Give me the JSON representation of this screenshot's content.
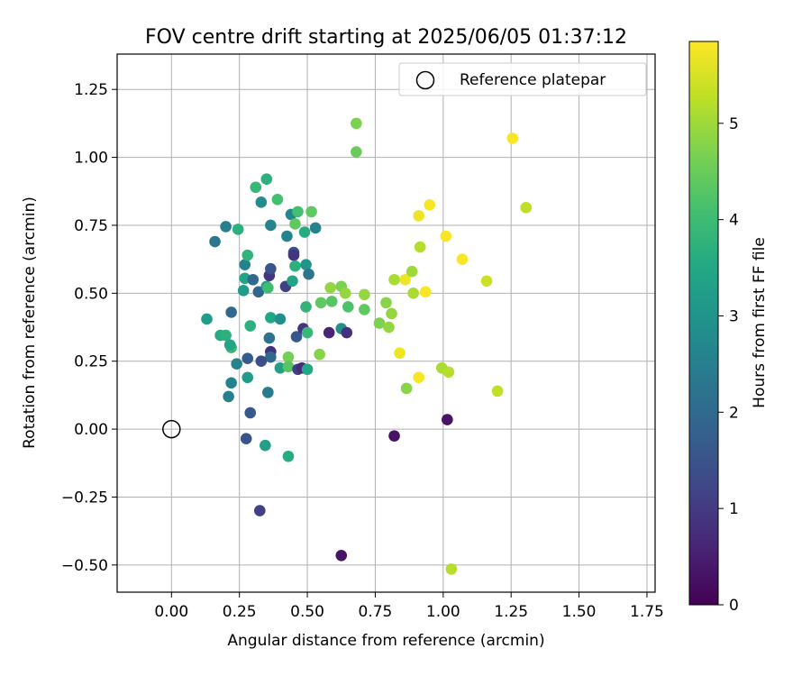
{
  "chart_data": {
    "type": "scatter",
    "title": "FOV centre drift starting at 2025/06/05 01:37:12",
    "xlabel": "Angular distance from reference (arcmin)",
    "ylabel": "Rotation from reference (arcmin)",
    "xlim": [
      -0.2,
      1.78
    ],
    "ylim": [
      -0.6,
      1.38
    ],
    "xticks": [
      "0.00",
      "0.25",
      "0.50",
      "0.75",
      "1.00",
      "1.25",
      "1.50",
      "1.75"
    ],
    "yticks": [
      "−0.50",
      "−0.25",
      "0.00",
      "0.25",
      "0.50",
      "0.75",
      "1.00",
      "1.25"
    ],
    "grid": true,
    "legend": {
      "placement": "top-right",
      "entries": [
        "Reference platepar"
      ]
    },
    "reference": {
      "x": 0.0,
      "y": 0.0
    },
    "colorbar": {
      "label": "Hours from first FF file",
      "colormap": "viridis",
      "min": 0,
      "max": 5.85,
      "ticks": [
        "0",
        "1",
        "2",
        "3",
        "4",
        "5"
      ]
    },
    "points": [
      {
        "x": 0.16,
        "y": 0.69,
        "h": 2.3
      },
      {
        "x": 0.2,
        "y": 0.745,
        "h": 2.5
      },
      {
        "x": 0.245,
        "y": 0.735,
        "h": 3.7
      },
      {
        "x": 0.13,
        "y": 0.405,
        "h": 3.2
      },
      {
        "x": 0.18,
        "y": 0.345,
        "h": 3.6
      },
      {
        "x": 0.2,
        "y": 0.345,
        "h": 3.7
      },
      {
        "x": 0.22,
        "y": 0.3,
        "h": 3.9
      },
      {
        "x": 0.215,
        "y": 0.31,
        "h": 3.4
      },
      {
        "x": 0.22,
        "y": 0.43,
        "h": 2.0
      },
      {
        "x": 0.24,
        "y": 0.24,
        "h": 2.6
      },
      {
        "x": 0.22,
        "y": 0.17,
        "h": 2.6
      },
      {
        "x": 0.21,
        "y": 0.12,
        "h": 2.5
      },
      {
        "x": 0.27,
        "y": 0.605,
        "h": 2.6
      },
      {
        "x": 0.27,
        "y": 0.555,
        "h": 3.4
      },
      {
        "x": 0.265,
        "y": 0.51,
        "h": 3.2
      },
      {
        "x": 0.28,
        "y": 0.64,
        "h": 3.8
      },
      {
        "x": 0.29,
        "y": 0.38,
        "h": 3.7
      },
      {
        "x": 0.28,
        "y": 0.26,
        "h": 1.7
      },
      {
        "x": 0.28,
        "y": 0.19,
        "h": 3.2
      },
      {
        "x": 0.29,
        "y": 0.06,
        "h": 1.6
      },
      {
        "x": 0.275,
        "y": -0.035,
        "h": 1.5
      },
      {
        "x": 0.31,
        "y": 0.89,
        "h": 3.9
      },
      {
        "x": 0.33,
        "y": 0.835,
        "h": 2.8
      },
      {
        "x": 0.35,
        "y": 0.92,
        "h": 3.7
      },
      {
        "x": 0.3,
        "y": 0.55,
        "h": 2.0
      },
      {
        "x": 0.32,
        "y": 0.505,
        "h": 1.9
      },
      {
        "x": 0.35,
        "y": 0.525,
        "h": 3.1
      },
      {
        "x": 0.355,
        "y": 0.52,
        "h": 4.0
      },
      {
        "x": 0.36,
        "y": 0.565,
        "h": 0.9
      },
      {
        "x": 0.365,
        "y": 0.59,
        "h": 1.5
      },
      {
        "x": 0.365,
        "y": 0.41,
        "h": 3.5
      },
      {
        "x": 0.36,
        "y": 0.335,
        "h": 2.2
      },
      {
        "x": 0.365,
        "y": 0.285,
        "h": 0.8
      },
      {
        "x": 0.365,
        "y": 0.265,
        "h": 2.0
      },
      {
        "x": 0.33,
        "y": 0.25,
        "h": 1.4
      },
      {
        "x": 0.355,
        "y": 0.135,
        "h": 2.4
      },
      {
        "x": 0.345,
        "y": -0.06,
        "h": 3.3
      },
      {
        "x": 0.325,
        "y": -0.3,
        "h": 1.1
      },
      {
        "x": 0.365,
        "y": 0.75,
        "h": 2.6
      },
      {
        "x": 0.39,
        "y": 0.845,
        "h": 4.1
      },
      {
        "x": 0.4,
        "y": 0.405,
        "h": 2.9
      },
      {
        "x": 0.4,
        "y": 0.225,
        "h": 3.3
      },
      {
        "x": 0.42,
        "y": 0.525,
        "h": 1.1
      },
      {
        "x": 0.425,
        "y": 0.71,
        "h": 2.6
      },
      {
        "x": 0.44,
        "y": 0.79,
        "h": 2.7
      },
      {
        "x": 0.455,
        "y": 0.755,
        "h": 4.4
      },
      {
        "x": 0.465,
        "y": 0.8,
        "h": 4.1
      },
      {
        "x": 0.45,
        "y": 0.65,
        "h": 1.4
      },
      {
        "x": 0.45,
        "y": 0.64,
        "h": 0.9
      },
      {
        "x": 0.455,
        "y": 0.6,
        "h": 3.7
      },
      {
        "x": 0.445,
        "y": 0.545,
        "h": 3.4
      },
      {
        "x": 0.43,
        "y": 0.265,
        "h": 4.6
      },
      {
        "x": 0.43,
        "y": 0.23,
        "h": 4.3
      },
      {
        "x": 0.46,
        "y": 0.34,
        "h": 1.6
      },
      {
        "x": 0.465,
        "y": 0.22,
        "h": 1.1
      },
      {
        "x": 0.43,
        "y": -0.1,
        "h": 3.6
      },
      {
        "x": 0.49,
        "y": 0.725,
        "h": 3.6
      },
      {
        "x": 0.495,
        "y": 0.605,
        "h": 3.0
      },
      {
        "x": 0.505,
        "y": 0.57,
        "h": 2.3
      },
      {
        "x": 0.495,
        "y": 0.45,
        "h": 3.8
      },
      {
        "x": 0.485,
        "y": 0.37,
        "h": 0.9
      },
      {
        "x": 0.5,
        "y": 0.355,
        "h": 3.9
      },
      {
        "x": 0.48,
        "y": 0.225,
        "h": 0.7
      },
      {
        "x": 0.5,
        "y": 0.22,
        "h": 3.5
      },
      {
        "x": 0.515,
        "y": 0.8,
        "h": 4.4
      },
      {
        "x": 0.53,
        "y": 0.74,
        "h": 2.6
      },
      {
        "x": 0.55,
        "y": 0.465,
        "h": 4.4
      },
      {
        "x": 0.545,
        "y": 0.275,
        "h": 4.8
      },
      {
        "x": 0.585,
        "y": 0.52,
        "h": 4.9
      },
      {
        "x": 0.59,
        "y": 0.47,
        "h": 4.3
      },
      {
        "x": 0.58,
        "y": 0.355,
        "h": 0.6
      },
      {
        "x": 0.625,
        "y": 0.525,
        "h": 4.7
      },
      {
        "x": 0.625,
        "y": 0.37,
        "h": 2.9
      },
      {
        "x": 0.64,
        "y": 0.5,
        "h": 4.9
      },
      {
        "x": 0.645,
        "y": 0.355,
        "h": 0.8
      },
      {
        "x": 0.65,
        "y": 0.45,
        "h": 4.2
      },
      {
        "x": 0.625,
        "y": -0.465,
        "h": 0.3
      },
      {
        "x": 0.68,
        "y": 1.125,
        "h": 4.7
      },
      {
        "x": 0.68,
        "y": 1.02,
        "h": 4.5
      },
      {
        "x": 0.71,
        "y": 0.495,
        "h": 4.9
      },
      {
        "x": 0.71,
        "y": 0.44,
        "h": 4.4
      },
      {
        "x": 0.765,
        "y": 0.39,
        "h": 4.7
      },
      {
        "x": 0.79,
        "y": 0.465,
        "h": 4.8
      },
      {
        "x": 0.8,
        "y": 0.375,
        "h": 4.9
      },
      {
        "x": 0.81,
        "y": 0.425,
        "h": 4.9
      },
      {
        "x": 0.82,
        "y": 0.55,
        "h": 5.1
      },
      {
        "x": 0.82,
        "y": -0.025,
        "h": 0.3
      },
      {
        "x": 0.84,
        "y": 0.28,
        "h": 5.7
      },
      {
        "x": 0.86,
        "y": 0.55,
        "h": 5.7
      },
      {
        "x": 0.865,
        "y": 0.15,
        "h": 4.8
      },
      {
        "x": 0.885,
        "y": 0.58,
        "h": 5.0
      },
      {
        "x": 0.89,
        "y": 0.5,
        "h": 5.1
      },
      {
        "x": 0.91,
        "y": 0.785,
        "h": 5.7
      },
      {
        "x": 0.915,
        "y": 0.67,
        "h": 5.2
      },
      {
        "x": 0.91,
        "y": 0.19,
        "h": 5.8
      },
      {
        "x": 0.935,
        "y": 0.505,
        "h": 5.8
      },
      {
        "x": 0.95,
        "y": 0.825,
        "h": 5.8
      },
      {
        "x": 0.995,
        "y": 0.225,
        "h": 5.1
      },
      {
        "x": 1.01,
        "y": 0.71,
        "h": 5.8
      },
      {
        "x": 1.015,
        "y": 0.035,
        "h": 0.3
      },
      {
        "x": 1.02,
        "y": 0.21,
        "h": 5.2
      },
      {
        "x": 1.03,
        "y": -0.515,
        "h": 5.2
      },
      {
        "x": 1.07,
        "y": 0.625,
        "h": 5.8
      },
      {
        "x": 1.16,
        "y": 0.545,
        "h": 5.4
      },
      {
        "x": 1.2,
        "y": 0.14,
        "h": 5.3
      },
      {
        "x": 1.255,
        "y": 1.07,
        "h": 5.8
      },
      {
        "x": 1.305,
        "y": 0.815,
        "h": 5.3
      }
    ]
  }
}
